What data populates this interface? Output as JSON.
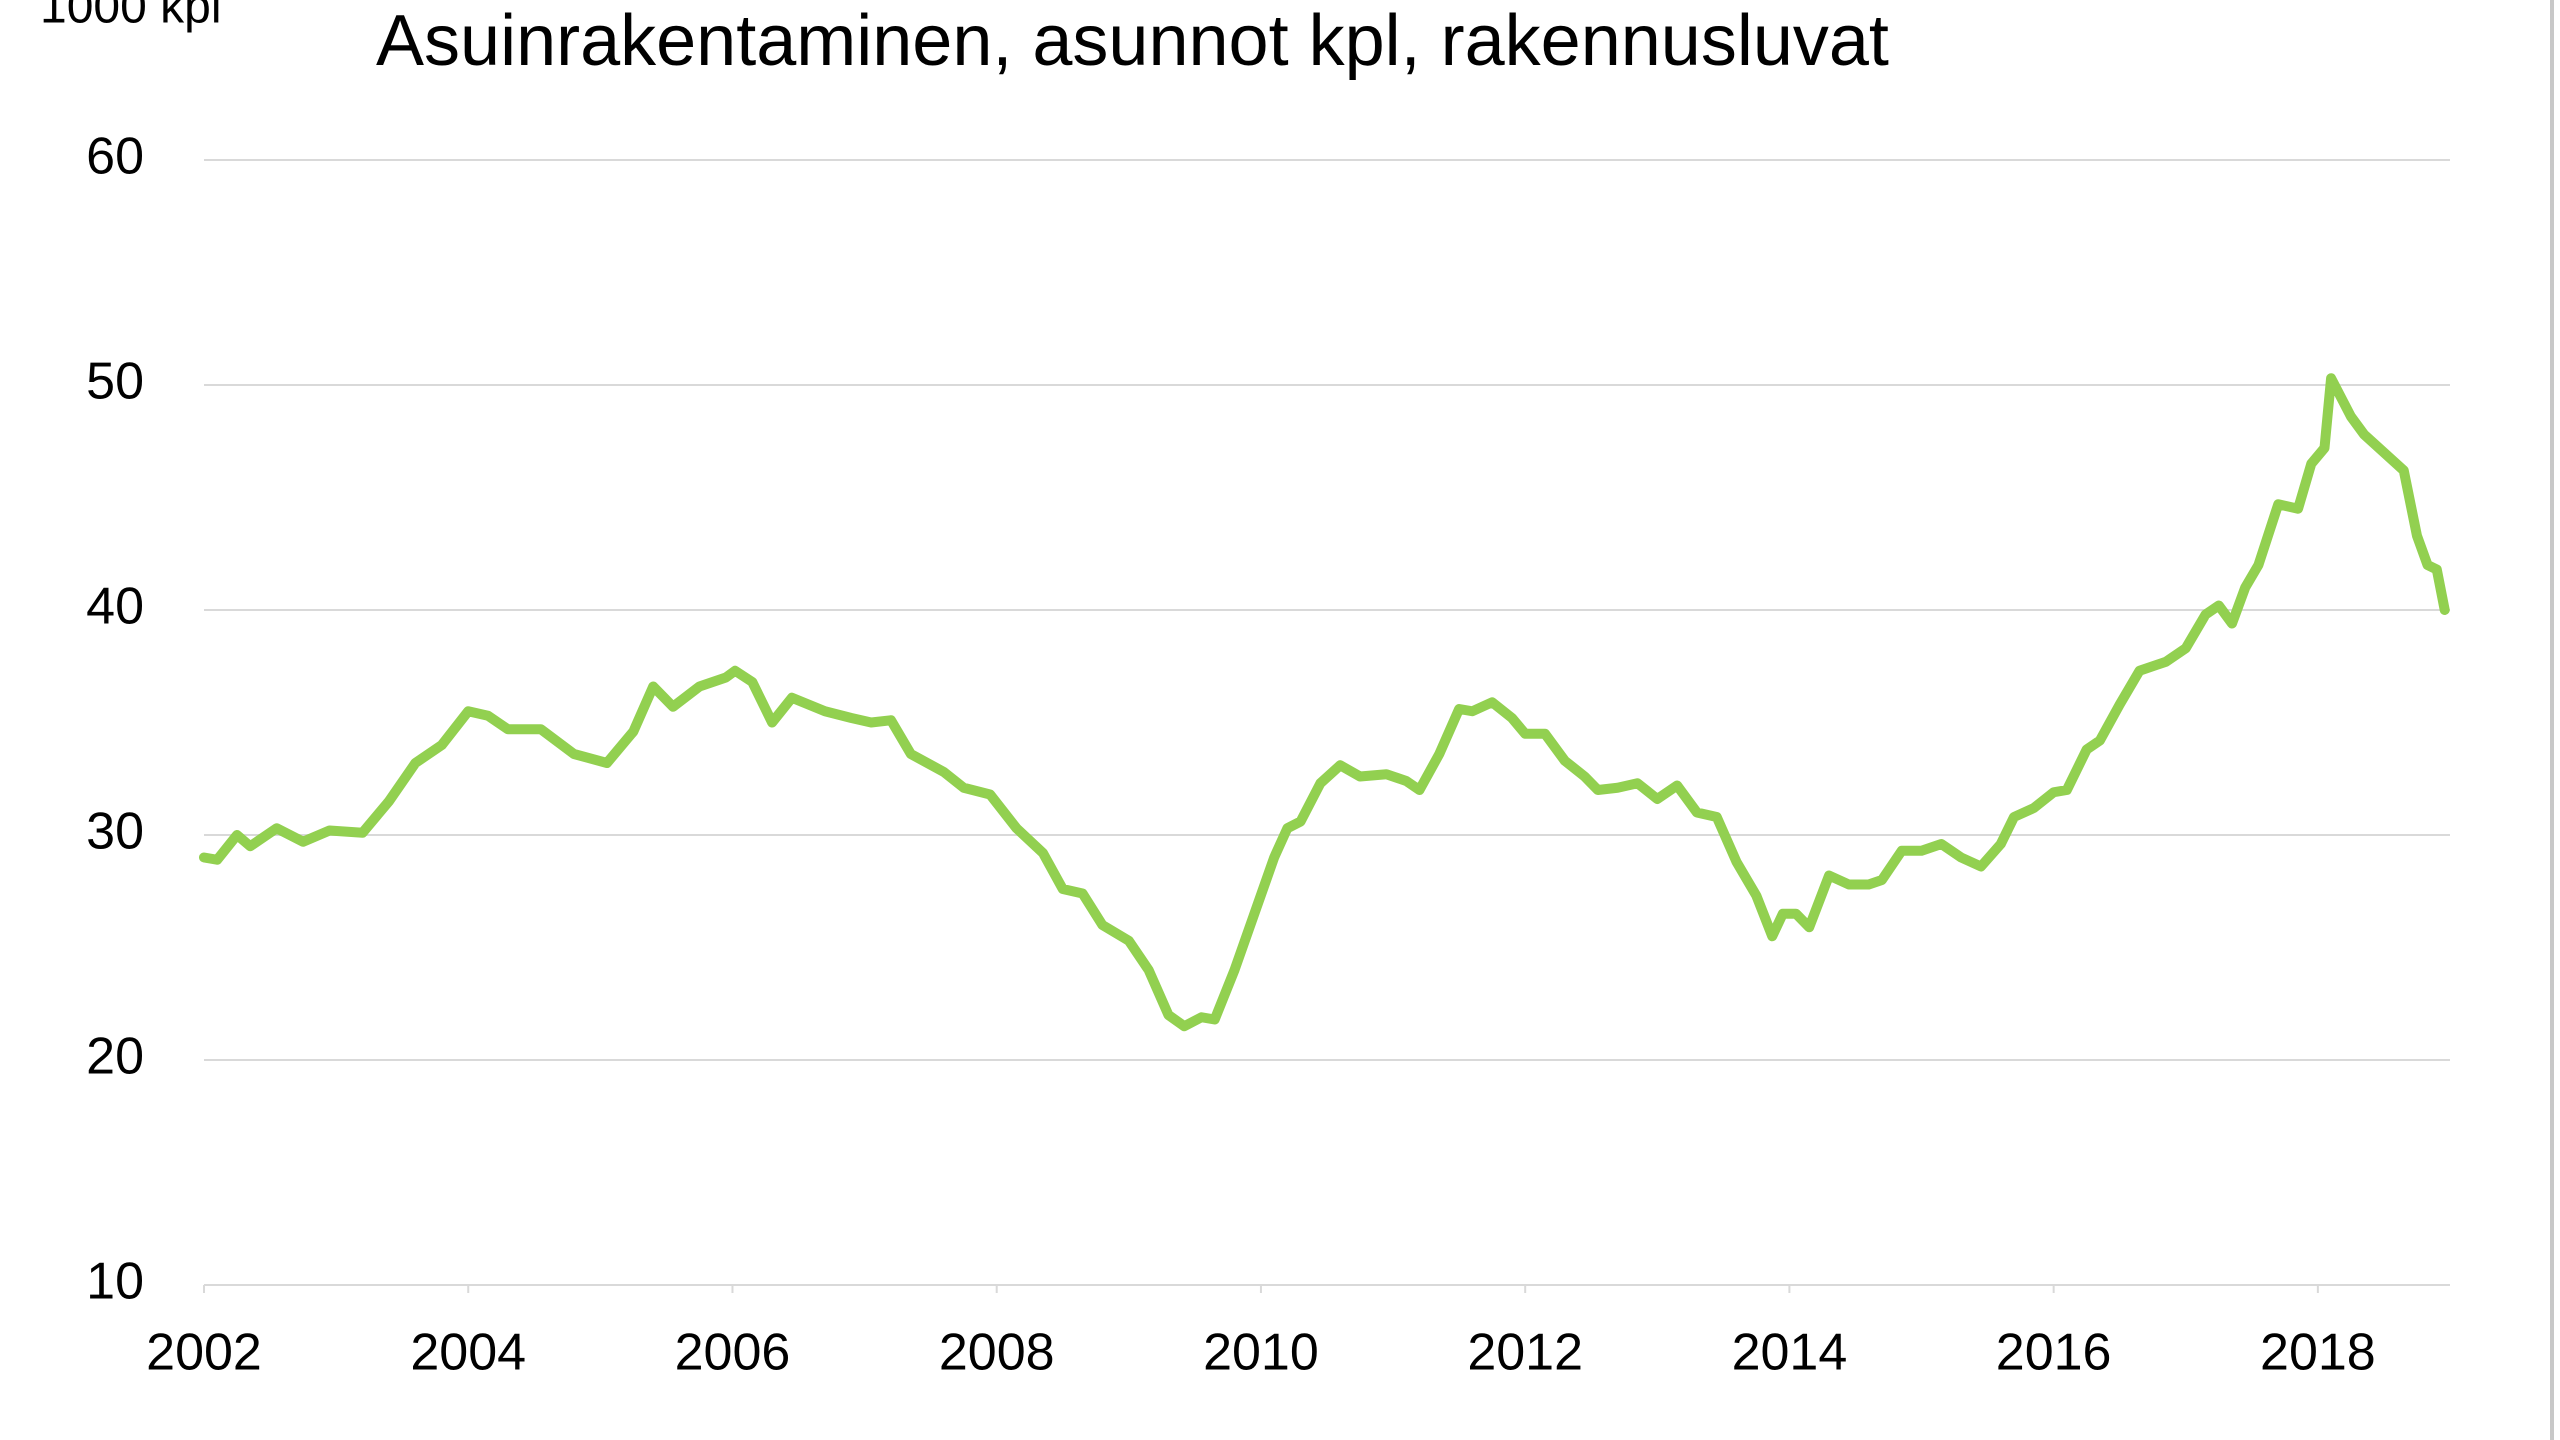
{
  "chart_data": {
    "type": "line",
    "title": "Asuinrakentaminen, asunnot kpl, rakennusluvat",
    "y_label": "1000 kpl",
    "color": "#92d050",
    "grid": true,
    "xlim": [
      2002,
      2019
    ],
    "xticks": [
      2002,
      2004,
      2006,
      2008,
      2010,
      2012,
      2014,
      2016,
      2018
    ],
    "ylim": [
      10,
      60
    ],
    "yticks": [
      10,
      20,
      30,
      40,
      50,
      60
    ],
    "x": [
      2002.0,
      2002.1,
      2002.25,
      2002.35,
      2002.55,
      2002.75,
      2002.95,
      2003.2,
      2003.4,
      2003.6,
      2003.8,
      2004.0,
      2004.15,
      2004.3,
      2004.55,
      2004.8,
      2005.05,
      2005.25,
      2005.4,
      2005.55,
      2005.75,
      2005.95,
      2006.02,
      2006.15,
      2006.3,
      2006.45,
      2006.7,
      2006.9,
      2007.05,
      2007.2,
      2007.35,
      2007.6,
      2007.75,
      2007.95,
      2008.15,
      2008.35,
      2008.5,
      2008.65,
      2008.8,
      2009.0,
      2009.15,
      2009.3,
      2009.42,
      2009.55,
      2009.65,
      2009.8,
      2009.95,
      2010.1,
      2010.2,
      2010.3,
      2010.45,
      2010.6,
      2010.75,
      2010.95,
      2011.1,
      2011.2,
      2011.35,
      2011.5,
      2011.6,
      2011.75,
      2011.9,
      2012.0,
      2012.15,
      2012.3,
      2012.45,
      2012.55,
      2012.7,
      2012.85,
      2013.0,
      2013.15,
      2013.3,
      2013.45,
      2013.6,
      2013.75,
      2013.87,
      2013.95,
      2014.05,
      2014.15,
      2014.3,
      2014.45,
      2014.6,
      2014.7,
      2014.85,
      2015.0,
      2015.15,
      2015.3,
      2015.45,
      2015.6,
      2015.7,
      2015.85,
      2016.0,
      2016.1,
      2016.25,
      2016.35,
      2016.5,
      2016.65,
      2016.85,
      2017.0,
      2017.15,
      2017.25,
      2017.35,
      2017.45,
      2017.55,
      2017.7,
      2017.85,
      2017.95,
      2018.05,
      2018.1,
      2018.25,
      2018.35,
      2018.5,
      2018.65,
      2018.75,
      2018.83,
      2018.9,
      2018.96
    ],
    "values": [
      29.0,
      28.9,
      30.0,
      29.5,
      30.3,
      29.7,
      30.2,
      30.1,
      31.5,
      33.2,
      34.0,
      35.5,
      35.3,
      34.7,
      34.7,
      33.6,
      33.2,
      34.6,
      36.6,
      35.7,
      36.6,
      37.0,
      37.3,
      36.8,
      35.0,
      36.1,
      35.5,
      35.2,
      35.0,
      35.1,
      33.6,
      32.8,
      32.1,
      31.8,
      30.3,
      29.2,
      27.6,
      27.4,
      26.0,
      25.3,
      24.0,
      22.0,
      21.5,
      21.9,
      21.8,
      24.0,
      26.5,
      29.0,
      30.3,
      30.6,
      32.3,
      33.1,
      32.6,
      32.7,
      32.4,
      32.0,
      33.6,
      35.6,
      35.5,
      35.9,
      35.2,
      34.5,
      34.5,
      33.3,
      32.6,
      32.0,
      32.1,
      32.3,
      31.6,
      32.2,
      31.0,
      30.8,
      28.8,
      27.3,
      25.5,
      26.5,
      26.5,
      25.9,
      28.2,
      27.8,
      27.8,
      28.0,
      29.3,
      29.3,
      29.6,
      29.0,
      28.6,
      29.6,
      30.8,
      31.2,
      31.9,
      32.0,
      33.8,
      34.2,
      35.8,
      37.3,
      37.7,
      38.3,
      39.8,
      40.2,
      39.4,
      41.0,
      42.0,
      44.7,
      44.5,
      46.5,
      47.2,
      50.3,
      48.6,
      47.8,
      47.0,
      46.2,
      43.3,
      42.0,
      41.8,
      40.0
    ]
  }
}
